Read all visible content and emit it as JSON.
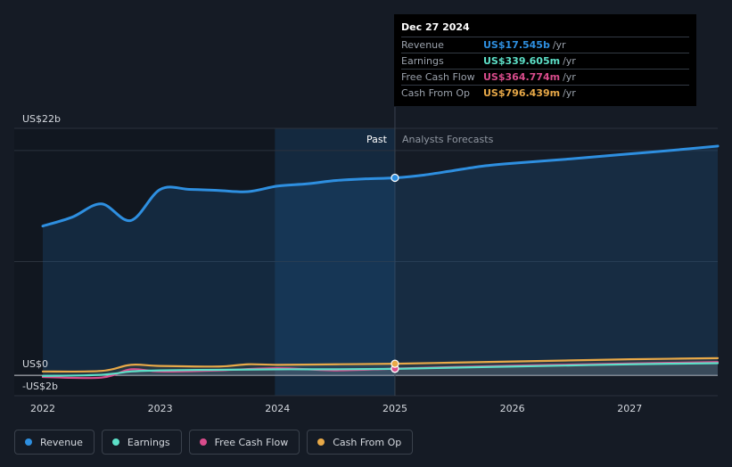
{
  "chart_data": {
    "type": "line",
    "x_ticks": [
      "2022",
      "2023",
      "2024",
      "2025",
      "2026",
      "2027"
    ],
    "y_ticks": [
      "US$22b",
      "US$0",
      "-US$2b"
    ],
    "y_tick_values": [
      22,
      0,
      -2
    ],
    "ylim": [
      -2,
      22
    ],
    "xlim": [
      2022,
      2027.75
    ],
    "divider_date": 2025.0,
    "region_labels": {
      "past": "Past",
      "forecast": "Analysts Forecasts"
    },
    "series": [
      {
        "name": "Revenue",
        "color": "#2e8fe0",
        "x": [
          2022.0,
          2022.25,
          2022.5,
          2022.75,
          2023.0,
          2023.25,
          2023.5,
          2023.75,
          2024.0,
          2024.25,
          2024.5,
          2024.75,
          2025.0,
          2025.25,
          2025.5,
          2025.75,
          2026.0,
          2026.5,
          2027.0,
          2027.5,
          2027.75
        ],
        "y": [
          13.2,
          14.0,
          15.2,
          13.7,
          16.5,
          16.5,
          16.4,
          16.3,
          16.8,
          17.0,
          17.3,
          17.45,
          17.545,
          17.8,
          18.2,
          18.6,
          18.85,
          19.25,
          19.7,
          20.15,
          20.4
        ]
      },
      {
        "name": "Earnings",
        "color": "#5de0c8",
        "x": [
          2022.0,
          2022.5,
          2022.75,
          2023.0,
          2023.5,
          2024.0,
          2024.5,
          2025.0,
          2025.5,
          2026.0,
          2026.5,
          2027.0,
          2027.75
        ],
        "y": [
          -0.3,
          -0.2,
          0.1,
          0.2,
          0.25,
          0.3,
          0.3,
          0.34,
          0.45,
          0.55,
          0.65,
          0.75,
          0.85
        ]
      },
      {
        "name": "Free Cash Flow",
        "color": "#d94c8c",
        "x": [
          2022.0,
          2022.5,
          2022.75,
          2023.0,
          2023.5,
          2024.0,
          2024.5,
          2025.0,
          2025.5,
          2026.0,
          2026.5,
          2027.0,
          2027.75
        ],
        "y": [
          -0.4,
          -0.45,
          0.3,
          0.1,
          0.2,
          0.4,
          0.2,
          0.36,
          0.5,
          0.62,
          0.72,
          0.82,
          0.95
        ]
      },
      {
        "name": "Cash From Op",
        "color": "#e8a948",
        "x": [
          2022.0,
          2022.5,
          2022.75,
          2023.0,
          2023.5,
          2023.75,
          2024.0,
          2024.5,
          2025.0,
          2025.5,
          2026.0,
          2026.5,
          2027.0,
          2027.75
        ],
        "y": [
          0.1,
          0.15,
          0.7,
          0.6,
          0.55,
          0.75,
          0.7,
          0.75,
          0.8,
          0.9,
          1.0,
          1.1,
          1.2,
          1.3
        ]
      }
    ]
  },
  "tooltip": {
    "date": "Dec 27 2024",
    "unit": "/yr",
    "rows": [
      {
        "label": "Revenue",
        "value": "US$17.545b",
        "color": "#2e8fe0"
      },
      {
        "label": "Earnings",
        "value": "US$339.605m",
        "color": "#5de0c8"
      },
      {
        "label": "Free Cash Flow",
        "value": "US$364.774m",
        "color": "#d94c8c"
      },
      {
        "label": "Cash From Op",
        "value": "US$796.439m",
        "color": "#e8a948"
      }
    ]
  },
  "legend": [
    {
      "label": "Revenue",
      "color": "#2e8fe0"
    },
    {
      "label": "Earnings",
      "color": "#5de0c8"
    },
    {
      "label": "Free Cash Flow",
      "color": "#d94c8c"
    },
    {
      "label": "Cash From Op",
      "color": "#e8a948"
    }
  ]
}
